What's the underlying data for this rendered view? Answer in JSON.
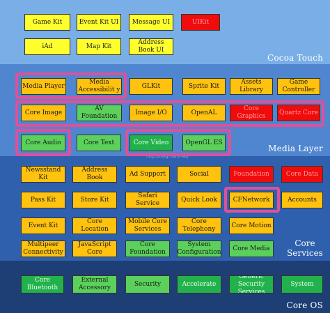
{
  "layers": {
    "cocoa_touch": {
      "title": "Cocoa Touch",
      "items": [
        {
          "label": "Game Kit",
          "color": "yellow"
        },
        {
          "label": "Event Kit UI",
          "color": "yellow"
        },
        {
          "label": "Message UI",
          "color": "yellow"
        },
        {
          "label": "UIKit",
          "color": "red"
        },
        {
          "label": "iAd",
          "color": "yellow"
        },
        {
          "label": "Map Kit",
          "color": "yellow"
        },
        {
          "label": "Address Book UI",
          "color": "yellow"
        }
      ]
    },
    "media": {
      "title": "Media Layer",
      "items": [
        {
          "label": "Media Player",
          "color": "orange"
        },
        {
          "label": "Media Accessibilit y",
          "color": "orange"
        },
        {
          "label": "GLKit",
          "color": "orange"
        },
        {
          "label": "Sprite Kit",
          "color": "orange"
        },
        {
          "label": "Assets Library",
          "color": "orange"
        },
        {
          "label": "Game Controller",
          "color": "orange"
        },
        {
          "label": "Core Image",
          "color": "orange"
        },
        {
          "label": "AV Foundation",
          "color": "green"
        },
        {
          "label": "Image I/O",
          "color": "orange"
        },
        {
          "label": "OpenAL",
          "color": "orange"
        },
        {
          "label": "Core Graphics",
          "color": "red"
        },
        {
          "label": "Quartz Core",
          "color": "red"
        },
        {
          "label": "Core Audio",
          "color": "green"
        },
        {
          "label": "Core Text",
          "color": "green"
        },
        {
          "label": "Core Video",
          "color": "dgreen"
        },
        {
          "label": "OpenGL ES",
          "color": "green"
        }
      ]
    },
    "core_services": {
      "title": "Core Services",
      "items": [
        {
          "label": "Newsstand Kit",
          "color": "orange"
        },
        {
          "label": "Address Book",
          "color": "orange"
        },
        {
          "label": "Ad Support",
          "color": "orange"
        },
        {
          "label": "Social",
          "color": "orange"
        },
        {
          "label": "Foundation",
          "color": "red"
        },
        {
          "label": "Core Data",
          "color": "red"
        },
        {
          "label": "Pass Kit",
          "color": "orange"
        },
        {
          "label": "Store Kit",
          "color": "orange"
        },
        {
          "label": "Safari Service",
          "color": "orange"
        },
        {
          "label": "Quick Look",
          "color": "orange"
        },
        {
          "label": "CFNetwork",
          "color": "orange"
        },
        {
          "label": "Accounts",
          "color": "orange"
        },
        {
          "label": "Event Kit",
          "color": "orange"
        },
        {
          "label": "Core Location",
          "color": "orange"
        },
        {
          "label": "Mobile Core Services",
          "color": "orange"
        },
        {
          "label": "Core Telephony",
          "color": "orange"
        },
        {
          "label": "Core Motion",
          "color": "orange"
        },
        {
          "label": "Multipeer Connectivity",
          "color": "orange"
        },
        {
          "label": "JavaScript Core",
          "color": "orange"
        },
        {
          "label": "Core Foundation",
          "color": "green"
        },
        {
          "label": "System Configuration",
          "color": "green"
        },
        {
          "label": "Core Media",
          "color": "green"
        }
      ]
    },
    "core_os": {
      "title": "Core OS",
      "items": [
        {
          "label": "Core Bluetooth",
          "color": "dgreen"
        },
        {
          "label": "External Accessory",
          "color": "green"
        },
        {
          "label": "Security",
          "color": "green"
        },
        {
          "label": "Accelerate",
          "color": "dgreen"
        },
        {
          "label": "Generic Security Services",
          "color": "dgreen"
        },
        {
          "label": "System",
          "color": "dgreen"
        }
      ]
    }
  },
  "watermark": "http://blog.csdn.net/",
  "colors": {
    "cocoa_touch_bg": "#7aaee6",
    "media_bg": "#4f86cf",
    "core_services_bg": "#2f60ad",
    "core_os_bg": "#1d3f75",
    "highlight": "#e0509a"
  }
}
